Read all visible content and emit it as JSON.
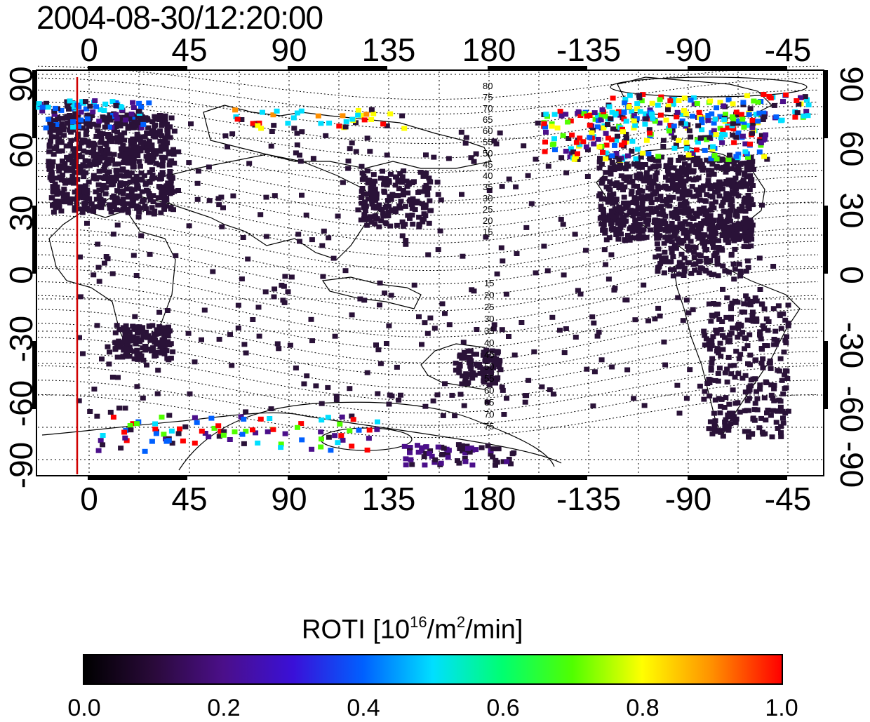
{
  "timestamp": "2004-08-30/12:20:00",
  "top_longitude_ticks": [
    "0",
    "45",
    "90",
    "135",
    "180",
    "-135",
    "-90",
    "-45"
  ],
  "bottom_longitude_ticks": [
    "0",
    "45",
    "90",
    "135",
    "180",
    "-135",
    "-90",
    "-45"
  ],
  "left_latitude_ticks": [
    "90",
    "60",
    "30",
    "0",
    "-30",
    "-60",
    "-90"
  ],
  "right_latitude_ticks": [
    "90",
    "60",
    "30",
    "0",
    "-30",
    "-60",
    "-90"
  ],
  "contour_labels_north": [
    "80",
    "75",
    "70",
    "65",
    "60",
    "55",
    "50",
    "45",
    "40",
    "35",
    "30",
    "25",
    "20",
    "15"
  ],
  "contour_labels_south": [
    "15",
    "20",
    "25",
    "30",
    "35",
    "40",
    "45",
    "50",
    "55",
    "60",
    "65",
    "70",
    "75"
  ],
  "colorbar": {
    "title_prefix": "ROTI  [10",
    "title_sup1": "16",
    "title_mid": "/m",
    "title_sup2": "2",
    "title_suffix": "/min]",
    "ticks": [
      "0.0",
      "0.2",
      "0.4",
      "0.6",
      "0.8",
      "1.0"
    ],
    "range": [
      0.0,
      1.0
    ],
    "stops": [
      "#000000",
      "#2a0a3a",
      "#4b0f8a",
      "#3a10d8",
      "#0060ff",
      "#00dfff",
      "#00ff70",
      "#50ff00",
      "#ffff00",
      "#ff9000",
      "#ff0000"
    ]
  },
  "colors": {
    "dark_roti": "#2a1238",
    "marker_line": "#d00000"
  }
}
